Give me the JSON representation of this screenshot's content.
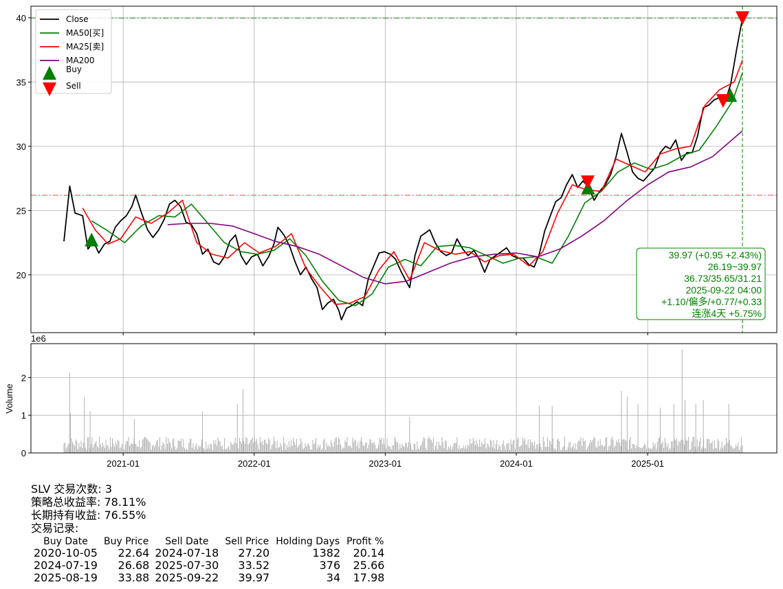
{
  "ticker": "SLV",
  "chart_data": [
    {
      "type": "line",
      "panel": "price",
      "ylim": [
        15.5,
        40.9
      ],
      "yticks": [
        20,
        25,
        30,
        35,
        40
      ],
      "grid": true,
      "legend_placement": "top-left",
      "date_range": [
        "2020-07-20",
        "2025-09-22"
      ],
      "series": [
        {
          "name": "Close",
          "color": "#000000",
          "x": [
            "2020-07-20",
            "2020-08-05",
            "2020-08-20",
            "2020-09-10",
            "2020-09-25",
            "2020-10-10",
            "2020-10-25",
            "2020-11-10",
            "2020-11-25",
            "2020-12-10",
            "2020-12-25",
            "2021-01-10",
            "2021-01-25",
            "2021-02-05",
            "2021-02-20",
            "2021-03-10",
            "2021-03-25",
            "2021-04-10",
            "2021-04-25",
            "2021-05-10",
            "2021-05-25",
            "2021-06-10",
            "2021-06-25",
            "2021-07-10",
            "2021-07-25",
            "2021-08-10",
            "2021-08-25",
            "2021-09-10",
            "2021-09-25",
            "2021-10-10",
            "2021-10-25",
            "2021-11-10",
            "2021-11-25",
            "2021-12-10",
            "2021-12-25",
            "2022-01-10",
            "2022-01-25",
            "2022-02-10",
            "2022-02-25",
            "2022-03-08",
            "2022-03-25",
            "2022-04-10",
            "2022-04-25",
            "2022-05-10",
            "2022-05-25",
            "2022-06-10",
            "2022-06-25",
            "2022-07-10",
            "2022-07-25",
            "2022-08-10",
            "2022-08-25",
            "2022-09-01",
            "2022-09-15",
            "2022-09-30",
            "2022-10-15",
            "2022-10-30",
            "2022-11-15",
            "2022-11-30",
            "2022-12-15",
            "2022-12-30",
            "2023-01-15",
            "2023-01-30",
            "2023-02-15",
            "2023-02-28",
            "2023-03-10",
            "2023-03-25",
            "2023-04-10",
            "2023-04-25",
            "2023-05-05",
            "2023-05-20",
            "2023-06-05",
            "2023-06-20",
            "2023-07-05",
            "2023-07-20",
            "2023-08-05",
            "2023-08-20",
            "2023-09-05",
            "2023-09-20",
            "2023-10-05",
            "2023-10-20",
            "2023-11-05",
            "2023-11-20",
            "2023-12-05",
            "2023-12-20",
            "2024-01-05",
            "2024-01-20",
            "2024-02-05",
            "2024-02-20",
            "2024-03-05",
            "2024-03-20",
            "2024-04-05",
            "2024-04-20",
            "2024-05-05",
            "2024-05-20",
            "2024-06-05",
            "2024-06-20",
            "2024-07-05",
            "2024-07-20",
            "2024-08-05",
            "2024-08-20",
            "2024-09-05",
            "2024-09-20",
            "2024-10-05",
            "2024-10-20",
            "2024-11-05",
            "2024-11-20",
            "2024-12-05",
            "2024-12-20",
            "2025-01-05",
            "2025-01-20",
            "2025-02-05",
            "2025-02-20",
            "2025-03-05",
            "2025-03-20",
            "2025-04-05",
            "2025-04-20",
            "2025-05-05",
            "2025-05-20",
            "2025-06-05",
            "2025-06-20",
            "2025-07-05",
            "2025-07-20",
            "2025-08-05",
            "2025-08-20",
            "2025-09-05",
            "2025-09-22"
          ],
          "y": [
            22.6,
            26.9,
            24.8,
            24.6,
            22.0,
            22.6,
            21.7,
            22.4,
            22.6,
            23.7,
            24.2,
            24.6,
            25.3,
            26.2,
            24.9,
            23.5,
            22.9,
            23.5,
            24.3,
            25.5,
            25.8,
            25.3,
            24.1,
            23.9,
            23.2,
            21.6,
            22.0,
            21.0,
            20.8,
            21.4,
            22.6,
            23.1,
            21.5,
            20.8,
            21.4,
            21.6,
            20.7,
            21.4,
            22.4,
            23.7,
            23.1,
            22.2,
            21.0,
            20.0,
            20.6,
            19.7,
            19.0,
            17.3,
            17.8,
            18.1,
            17.2,
            16.5,
            17.4,
            17.6,
            17.9,
            17.6,
            19.7,
            20.7,
            21.7,
            21.8,
            21.6,
            21.2,
            20.2,
            19.5,
            19.0,
            21.5,
            23.0,
            23.3,
            23.5,
            22.5,
            21.8,
            21.5,
            21.7,
            22.8,
            22.0,
            21.5,
            21.9,
            21.2,
            20.2,
            21.2,
            21.5,
            21.8,
            22.1,
            21.5,
            21.3,
            21.3,
            20.8,
            20.6,
            21.6,
            23.4,
            24.6,
            25.7,
            26.0,
            27.0,
            27.8,
            26.8,
            27.3,
            26.8,
            25.8,
            26.5,
            27.0,
            27.8,
            29.2,
            31.0,
            29.5,
            28.0,
            27.5,
            27.3,
            27.8,
            28.3,
            29.5,
            30.0,
            29.8,
            30.5,
            28.9,
            29.5,
            29.5,
            30.8,
            33.0,
            33.2,
            33.6,
            33.8,
            33.5,
            34.8,
            37.4,
            39.97
          ]
        },
        {
          "name": "MA50[买]",
          "color": "#008000",
          "x": [
            "2020-10-05",
            "2020-11-15",
            "2021-01-05",
            "2021-02-20",
            "2021-04-10",
            "2021-05-25",
            "2021-07-10",
            "2021-08-25",
            "2021-10-10",
            "2021-11-25",
            "2022-01-10",
            "2022-02-25",
            "2022-04-10",
            "2022-05-25",
            "2022-07-10",
            "2022-08-25",
            "2022-10-10",
            "2022-11-25",
            "2023-01-10",
            "2023-02-25",
            "2023-04-10",
            "2023-05-25",
            "2023-07-10",
            "2023-08-25",
            "2023-10-10",
            "2023-11-25",
            "2024-01-10",
            "2024-02-25",
            "2024-04-10",
            "2024-05-25",
            "2024-07-10",
            "2024-08-25",
            "2024-10-10",
            "2024-11-25",
            "2025-01-10",
            "2025-02-25",
            "2025-04-10",
            "2025-05-25",
            "2025-07-10",
            "2025-08-25",
            "2025-09-22"
          ],
          "y": [
            24.2,
            23.5,
            22.5,
            23.8,
            24.6,
            24.5,
            25.5,
            24.0,
            22.5,
            21.8,
            21.6,
            21.9,
            22.8,
            21.5,
            19.5,
            18.0,
            17.6,
            18.5,
            20.6,
            21.2,
            20.7,
            22.2,
            22.3,
            22.1,
            21.5,
            20.9,
            21.3,
            21.4,
            20.9,
            23.0,
            25.6,
            26.5,
            28.0,
            28.7,
            28.2,
            28.6,
            29.3,
            29.7,
            31.5,
            33.5,
            35.7
          ]
        },
        {
          "name": "MA25[卖]",
          "color": "#ff0000",
          "x": [
            "2020-09-10",
            "2020-10-15",
            "2020-11-20",
            "2020-12-25",
            "2021-02-05",
            "2021-03-20",
            "2021-05-05",
            "2021-06-15",
            "2021-07-25",
            "2021-09-05",
            "2021-10-20",
            "2021-12-05",
            "2022-01-15",
            "2022-03-01",
            "2022-04-15",
            "2022-05-25",
            "2022-07-05",
            "2022-08-15",
            "2022-09-25",
            "2022-11-05",
            "2022-12-15",
            "2023-01-25",
            "2023-03-10",
            "2023-04-20",
            "2023-06-01",
            "2023-07-15",
            "2023-08-25",
            "2023-10-05",
            "2023-11-15",
            "2023-12-25",
            "2024-02-05",
            "2024-03-15",
            "2024-04-25",
            "2024-06-05",
            "2024-07-15",
            "2024-08-25",
            "2024-10-05",
            "2024-11-15",
            "2024-12-25",
            "2025-02-05",
            "2025-03-20",
            "2025-05-01",
            "2025-06-10",
            "2025-07-20",
            "2025-08-30",
            "2025-09-22"
          ],
          "y": [
            25.2,
            23.5,
            22.4,
            22.8,
            24.5,
            24.0,
            24.8,
            25.8,
            22.5,
            21.6,
            21.3,
            22.5,
            21.7,
            22.2,
            23.2,
            20.5,
            19.0,
            17.7,
            17.8,
            18.3,
            20.4,
            21.8,
            19.6,
            22.5,
            21.9,
            21.6,
            21.8,
            21.0,
            21.5,
            21.6,
            20.7,
            21.8,
            24.8,
            27.0,
            26.6,
            26.5,
            29.0,
            28.5,
            28.0,
            29.4,
            29.8,
            30.0,
            33.2,
            34.4,
            35.0,
            36.7
          ]
        },
        {
          "name": "MA200",
          "color": "#800080",
          "x": [
            "2021-05-05",
            "2021-07-01",
            "2021-09-01",
            "2021-11-01",
            "2022-01-01",
            "2022-03-01",
            "2022-05-01",
            "2022-07-01",
            "2022-09-01",
            "2022-11-01",
            "2023-01-01",
            "2023-03-01",
            "2023-05-01",
            "2023-07-01",
            "2023-09-01",
            "2023-11-01",
            "2024-01-01",
            "2024-03-01",
            "2024-05-01",
            "2024-07-01",
            "2024-09-01",
            "2024-11-01",
            "2025-01-01",
            "2025-03-01",
            "2025-05-01",
            "2025-07-01",
            "2025-09-22"
          ],
          "y": [
            23.9,
            24.0,
            24.0,
            23.8,
            23.2,
            22.6,
            22.2,
            21.6,
            20.7,
            19.8,
            19.3,
            19.5,
            20.2,
            20.9,
            21.4,
            21.6,
            21.7,
            21.4,
            22.0,
            23.0,
            24.2,
            25.7,
            27.0,
            28.0,
            28.4,
            29.2,
            31.2
          ]
        }
      ],
      "hlines": [
        {
          "y": 39.97,
          "color": "#008000",
          "style": "dash-dot"
        },
        {
          "y": 26.19,
          "color": "#ff0000",
          "style": "dash-dot"
        }
      ],
      "vlines": [
        {
          "x": "2025-09-22",
          "color": "#008000",
          "style": "dashed"
        }
      ],
      "markers": [
        {
          "name": "Buy",
          "shape": "triangle-up",
          "color": "#008000",
          "points": [
            {
              "x": "2020-10-05",
              "y": 22.64
            },
            {
              "x": "2024-07-19",
              "y": 26.68
            },
            {
              "x": "2025-08-19",
              "y": 33.88
            }
          ]
        },
        {
          "name": "Sell",
          "shape": "triangle-down",
          "color": "#ff0000",
          "points": [
            {
              "x": "2024-07-18",
              "y": 27.2
            },
            {
              "x": "2025-07-30",
              "y": 33.52
            },
            {
              "x": "2025-09-22",
              "y": 39.97
            }
          ]
        }
      ],
      "info_box": {
        "placement": "bottom-right",
        "lines": [
          "39.97 (+0.95 +2.43%)",
          "26.19~39.97",
          "36.73/35.65/31.21",
          "2025-09-22 04:00",
          "+1.10/偏多/+0.77/+0.33",
          "连涨4天 +5.75%"
        ],
        "color": "#008000"
      }
    },
    {
      "type": "bar",
      "panel": "volume",
      "ylabel": "Volume",
      "scale_label": "1e6",
      "ylim": [
        0,
        2.9
      ],
      "yticks": [
        0,
        1,
        2
      ],
      "grid": true,
      "xticks": [
        "2021-01",
        "2022-01",
        "2023-01",
        "2024-01",
        "2025-01"
      ],
      "bar_color": "#b0b0b0",
      "peaks": [
        {
          "x": "2020-08-05",
          "value": 2.13
        },
        {
          "x": "2020-08-07",
          "value": 1.05
        },
        {
          "x": "2020-09-15",
          "value": 1.48
        },
        {
          "x": "2020-10-01",
          "value": 1.1
        },
        {
          "x": "2021-02-01",
          "value": 0.9
        },
        {
          "x": "2021-08-10",
          "value": 1.1
        },
        {
          "x": "2021-11-15",
          "value": 1.3
        },
        {
          "x": "2021-12-01",
          "value": 1.7
        },
        {
          "x": "2023-03-10",
          "value": 0.95
        },
        {
          "x": "2024-03-05",
          "value": 1.25
        },
        {
          "x": "2024-04-10",
          "value": 1.25
        },
        {
          "x": "2024-10-20",
          "value": 1.65
        },
        {
          "x": "2024-11-05",
          "value": 1.5
        },
        {
          "x": "2024-12-05",
          "value": 1.3
        },
        {
          "x": "2025-02-05",
          "value": 1.2
        },
        {
          "x": "2025-03-15",
          "value": 1.3
        },
        {
          "x": "2025-04-07",
          "value": 2.75
        },
        {
          "x": "2025-04-15",
          "value": 1.4
        },
        {
          "x": "2025-05-15",
          "value": 1.3
        },
        {
          "x": "2025-06-05",
          "value": 1.4
        },
        {
          "x": "2025-08-15",
          "value": 1.3
        }
      ],
      "base_level": 0.3
    }
  ],
  "stats": {
    "trade_count_line": "SLV 交易次数: 3",
    "strategy_return_line": "策略总收益率: 78.11%",
    "hold_return_line": "长期持有收益: 76.55%",
    "records_title": "交易记录:"
  },
  "trade_table": {
    "headers": [
      "Buy Date",
      "Buy Price",
      "Sell Date",
      "Sell Price",
      "Holding Days",
      "Profit %"
    ],
    "rows": [
      [
        "2020-10-05",
        "22.64",
        "2024-07-18",
        "27.20",
        "1382",
        "20.14"
      ],
      [
        "2024-07-19",
        "26.68",
        "2025-07-30",
        "33.52",
        "376",
        "25.66"
      ],
      [
        "2025-08-19",
        "33.88",
        "2025-09-22",
        "39.97",
        "34",
        "17.98"
      ]
    ]
  }
}
